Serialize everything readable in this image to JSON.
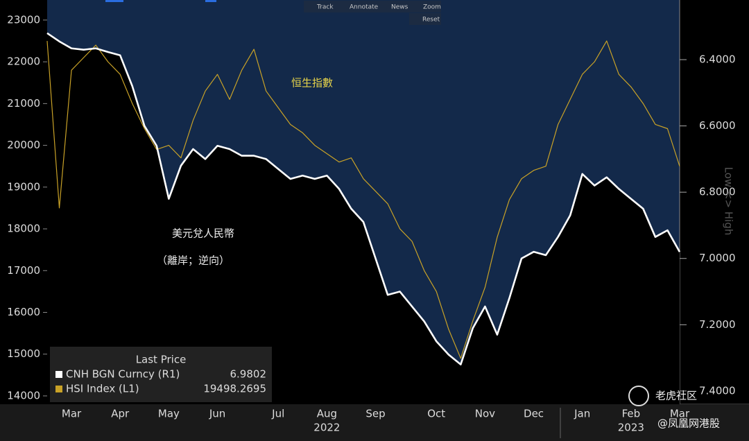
{
  "chart_data": {
    "type": "line",
    "categories": [
      null,
      null,
      "Mar",
      null,
      null,
      null,
      "Apr",
      null,
      null,
      null,
      "May",
      null,
      null,
      null,
      "Jun",
      null,
      null,
      null,
      null,
      "Jul",
      null,
      null,
      null,
      "Aug",
      null,
      null,
      null,
      "Sep",
      null,
      null,
      null,
      null,
      "Oct",
      null,
      null,
      null,
      "Nov",
      null,
      null,
      null,
      "Dec",
      null,
      null,
      null,
      "Jan",
      null,
      null,
      null,
      "Feb",
      null,
      null,
      null,
      "Mar"
    ],
    "year_labels": [
      {
        "label": "2022",
        "at": "Aug"
      },
      {
        "label": "2023",
        "at": "Feb"
      }
    ],
    "series": [
      {
        "name": "CNH BGN Curncy (R1)",
        "color": "#ffffff",
        "axis": "y2",
        "last_price": 6.9802,
        "values": [
          6.32,
          6.345,
          6.366,
          6.37,
          6.366,
          6.377,
          6.387,
          6.48,
          6.6,
          6.66,
          6.82,
          6.72,
          6.67,
          6.7,
          6.66,
          6.67,
          6.69,
          6.69,
          6.7,
          6.73,
          6.76,
          6.75,
          6.76,
          6.75,
          6.79,
          6.85,
          6.89,
          7.0,
          7.11,
          7.1,
          7.145,
          7.19,
          7.25,
          7.29,
          7.32,
          7.21,
          7.145,
          7.23,
          7.12,
          7.0,
          6.98,
          6.99,
          6.935,
          6.87,
          6.745,
          6.78,
          6.755,
          6.79,
          6.82,
          6.85,
          6.935,
          6.915,
          6.9802
        ]
      },
      {
        "name": "HSI Index (L1)",
        "color": "#c9a227",
        "axis": "y",
        "last_price": 19498.2695,
        "values": [
          22500,
          18500,
          21800,
          22100,
          22400,
          22000,
          21700,
          21000,
          20400,
          19900,
          20000,
          19700,
          20600,
          21300,
          21700,
          21100,
          21800,
          22300,
          21300,
          20900,
          20500,
          20300,
          20000,
          19800,
          19600,
          19700,
          19200,
          18900,
          18600,
          18000,
          17700,
          17000,
          16500,
          15600,
          14900,
          15800,
          16600,
          17800,
          18700,
          19200,
          19400,
          19500,
          20500,
          21100,
          21700,
          22000,
          22500,
          21700,
          21400,
          21000,
          20500,
          20400,
          19498.2695
        ]
      }
    ],
    "ylim": [
      13800,
      23480
    ],
    "yticks": [
      14000,
      15000,
      16000,
      17000,
      18000,
      19000,
      20000,
      21000,
      22000,
      23000
    ],
    "y2lim": [
      6.22,
      7.44
    ],
    "y2_inverted": true,
    "y2ticks": [
      {
        "value": 6.4,
        "label": "6.4000"
      },
      {
        "value": 6.6,
        "label": "6.6000"
      },
      {
        "value": 6.8,
        "label": "6.8000"
      },
      {
        "value": 7.0,
        "label": "7.0000"
      },
      {
        "value": 7.2,
        "label": "7.2000"
      },
      {
        "value": 7.4,
        "label": "7.4000"
      }
    ],
    "y2_axis_label": "Low <> High",
    "legend_title": "Last Price",
    "annotations": [
      "恒生指數",
      "美元兌人民幣",
      "（離岸；逆向）"
    ]
  },
  "toolbar": [
    "Track",
    "Annotate",
    "News",
    "Zoom",
    "Reset"
  ],
  "watermarks": [
    "老虎社区",
    "@凤凰网港股"
  ]
}
